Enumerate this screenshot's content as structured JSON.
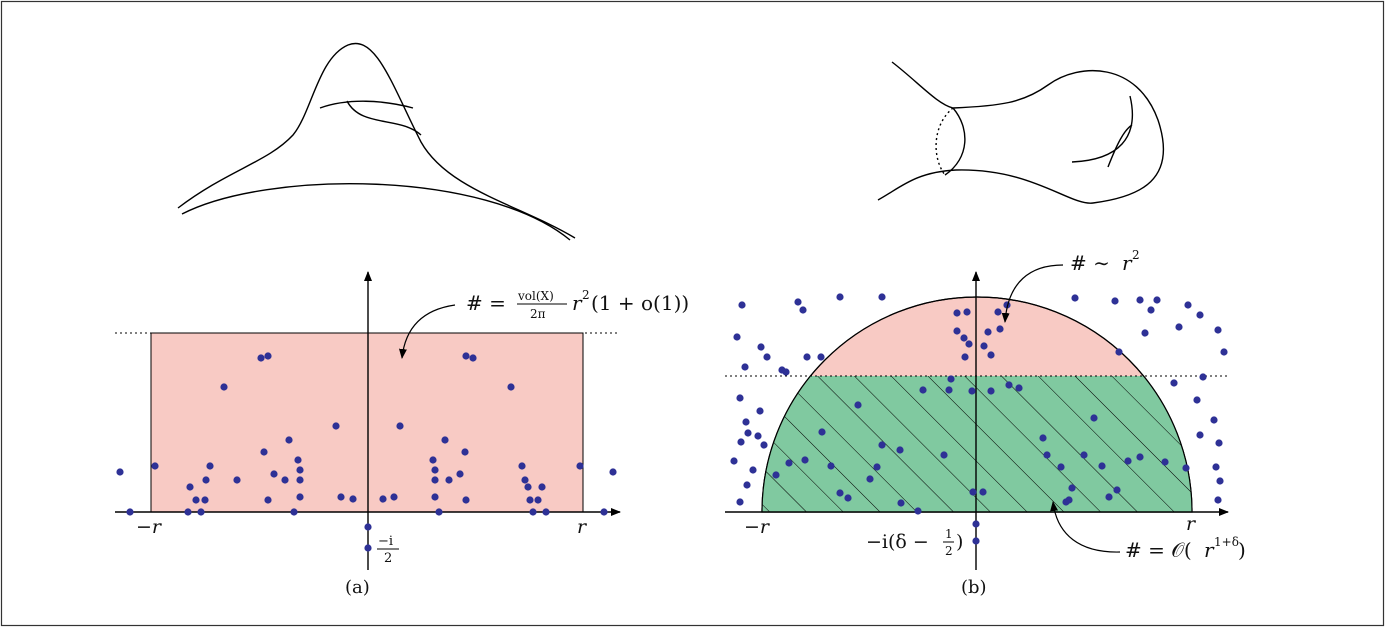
{
  "colors": {
    "frame": "#333333",
    "curve": "#000000",
    "pink": "#f8cac4",
    "green": "#80c9a0",
    "dot": "#2e3196"
  },
  "panel_a": {
    "caption": "(a)",
    "neg_r_label": "−r",
    "r_label": "r",
    "pole_label_num": "−i",
    "pole_label_den": "2",
    "count_label_hash": "# =",
    "count_label_frac_num": "vol(X)",
    "count_label_frac_den": "2π",
    "count_label_tail_r": "r",
    "count_label_tail_exp": "2",
    "count_label_tail_rest": "(1 + o(1))"
  },
  "panel_b": {
    "caption": "(b)",
    "neg_r_label": "−r",
    "r_label": "r",
    "pole_label_prefix": "−i(δ −",
    "pole_label_frac_num": "1",
    "pole_label_frac_den": "2",
    "pole_label_suffix": ")",
    "top_label_hash": "# ∼",
    "top_label_r": "r",
    "top_label_exp": "2",
    "bottom_label_hash": "# = 𝒪(",
    "bottom_label_r": "r",
    "bottom_label_exp": "1+δ",
    "bottom_label_suffix": ")"
  }
}
